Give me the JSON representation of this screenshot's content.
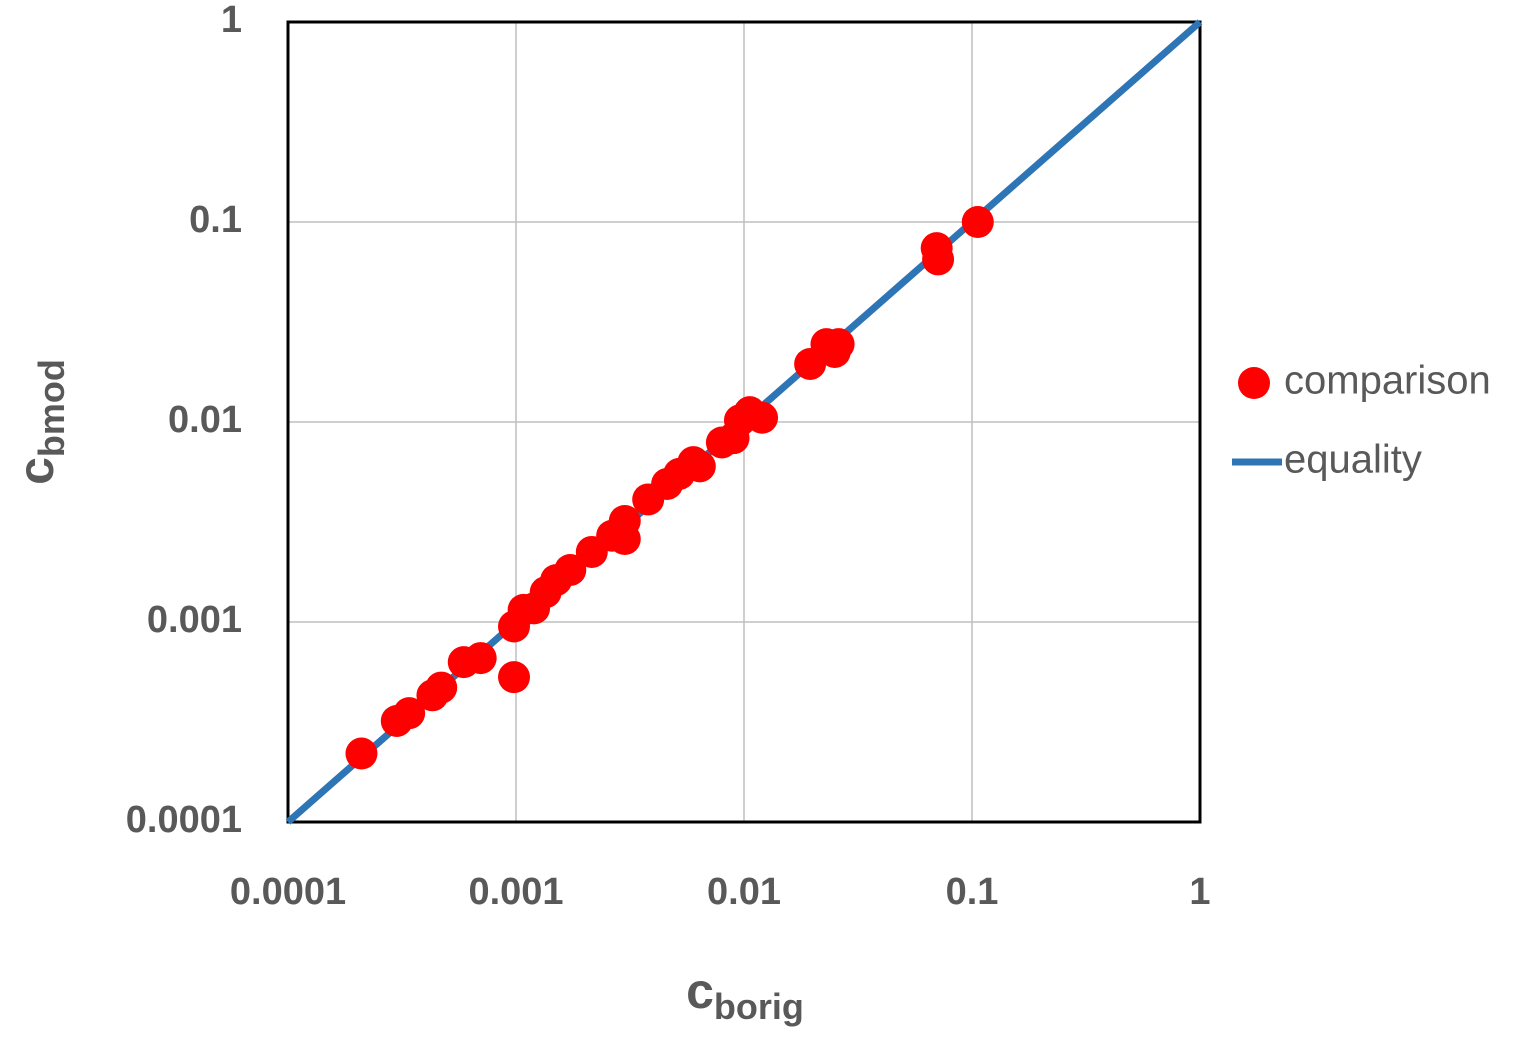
{
  "chart_data": {
    "type": "scatter",
    "x_label": "c",
    "x_label_subscript": "borig",
    "y_label": "c",
    "y_label_subscript": "bmod",
    "log_x": true,
    "log_y": true,
    "grid": true,
    "legend": "right",
    "xlim": [
      0.0001,
      1
    ],
    "xticks": [
      0.0001,
      0.001,
      0.01,
      0.1,
      1
    ],
    "ylim": [
      0.0001,
      1
    ],
    "yticks": [
      0.0001,
      0.001,
      0.01,
      0.1,
      1
    ],
    "series": [
      {
        "name": "comparison",
        "color": "#ff0000",
        "mode": "markers",
        "x": [
          0.00021,
          0.0003,
          0.00034,
          0.00043,
          0.00047,
          0.00059,
          0.0007,
          0.00098,
          0.00098,
          0.00108,
          0.0012,
          0.00135,
          0.0015,
          0.00173,
          0.00215,
          0.00264,
          0.003,
          0.003,
          0.0038,
          0.0046,
          0.0052,
          0.006,
          0.0064,
          0.008,
          0.009,
          0.0096,
          0.0106,
          0.012,
          0.0195,
          0.023,
          0.026,
          0.025,
          0.07,
          0.071,
          0.106
        ],
        "values": [
          0.00022,
          0.00032,
          0.00035,
          0.00043,
          0.00047,
          0.00063,
          0.00066,
          0.00053,
          0.00095,
          0.00115,
          0.00117,
          0.00141,
          0.00162,
          0.00182,
          0.00224,
          0.0027,
          0.0032,
          0.0026,
          0.0041,
          0.0049,
          0.0055,
          0.0063,
          0.006,
          0.0079,
          0.0083,
          0.0102,
          0.0112,
          0.0105,
          0.0195,
          0.0245,
          0.0245,
          0.0224,
          0.074,
          0.065,
          0.1
        ]
      },
      {
        "name": "equality",
        "color": "#2e75b6",
        "mode": "line",
        "x": [
          0.0001,
          1
        ],
        "values": [
          0.0001,
          1
        ]
      }
    ]
  }
}
